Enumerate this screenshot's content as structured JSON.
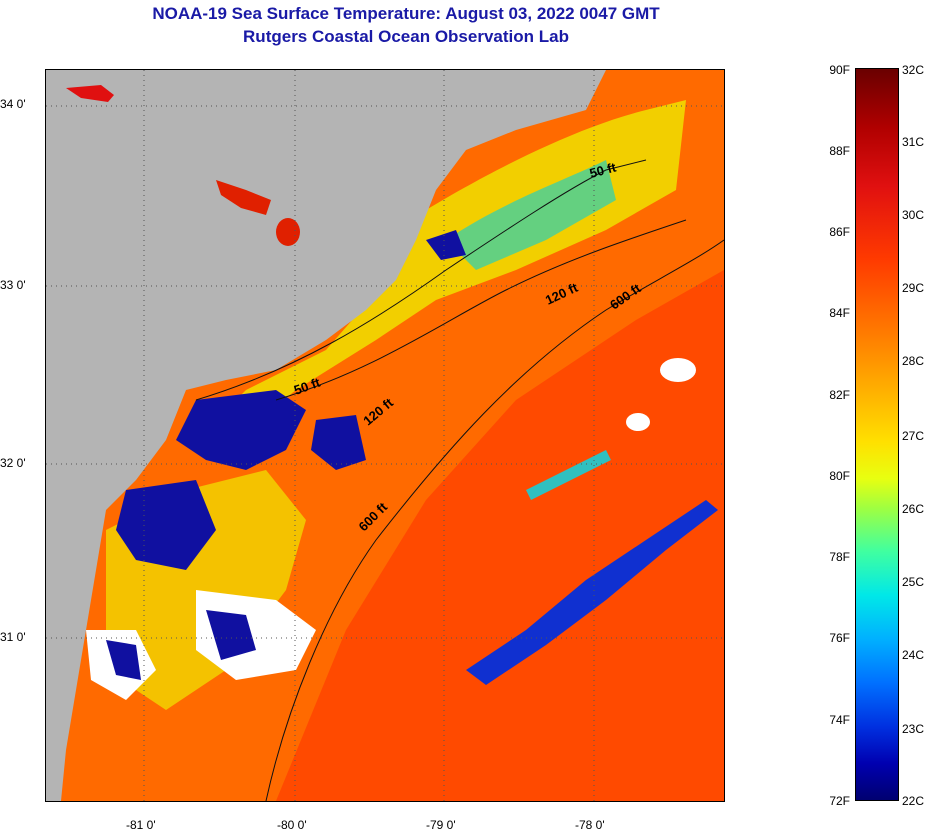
{
  "header": {
    "title_line1": "NOAA-19 Sea Surface Temperature:  August 03, 2022 0047 GMT",
    "title_line2": "Rutgers Coastal Ocean Observation Lab"
  },
  "map": {
    "lat_labels": [
      "34 0'",
      "33 0'",
      "32 0'",
      "31 0'"
    ],
    "lon_labels": [
      "-81 0'",
      "-80 0'",
      "-79 0'",
      "-78 0'"
    ],
    "contour_labels": [
      "50 ft",
      "120 ft",
      "600 ft",
      "50 ft",
      "120 ft",
      "600 ft"
    ],
    "colors": {
      "land": "#b4b4b4",
      "ocean_warm": "#ff6a00",
      "ocean_hot": "#ff3a00",
      "shelf_yellow": "#f0e000",
      "cool_cyan": "#30d0d0",
      "cold_blue": "#1010a0",
      "cloud": "#ffffff"
    }
  },
  "colorbar": {
    "fahrenheit": [
      "90F",
      "88F",
      "86F",
      "84F",
      "82F",
      "80F",
      "78F",
      "76F",
      "74F",
      "72F"
    ],
    "celsius": [
      "32C",
      "31C",
      "30C",
      "29C",
      "28C",
      "27C",
      "26C",
      "25C",
      "24C",
      "23C",
      "22C"
    ]
  }
}
